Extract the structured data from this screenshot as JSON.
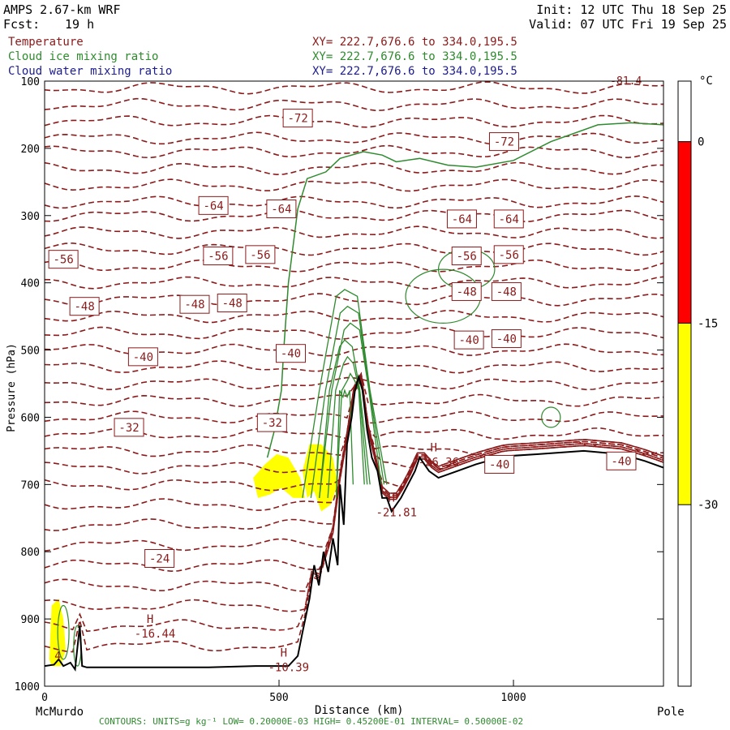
{
  "header": {
    "model": "AMPS 2.67-km WRF",
    "forecast_label": "Fcst:",
    "forecast_hours": "19 h",
    "init": "Init: 12 UTC Thu 18 Sep 25",
    "valid": "Valid: 07 UTC Fri 19 Sep 25"
  },
  "fields": [
    {
      "name": "Temperature",
      "xy": "XY= 222.7,676.6 to 334.0,195.5",
      "color": "#8b1a1a"
    },
    {
      "name": "Cloud ice mixing ratio",
      "xy": "XY= 222.7,676.6 to 334.0,195.5",
      "color": "#2e8b2e"
    },
    {
      "name": "Cloud water mixing ratio",
      "xy": "XY= 222.7,676.6 to 334.0,195.5",
      "color": "#1c1c8c"
    }
  ],
  "footer": {
    "contours": "CONTOURS: UNITS=g kg⁻¹ LOW= 0.20000E-03 HIGH= 0.45200E-01 INTERVAL= 0.50000E-02",
    "start_label": "McMurdo",
    "end_label": "Pole"
  },
  "colorbar": {
    "unit": "°C",
    "ticks": [
      0,
      -15,
      -30
    ],
    "bands": [
      {
        "from": 5,
        "to": 0,
        "color": "#ffffff"
      },
      {
        "from": 0,
        "to": -15,
        "color": "#ff0000"
      },
      {
        "from": -15,
        "to": -30,
        "color": "#ffff00"
      },
      {
        "from": -30,
        "to": -45,
        "color": "#ffffff"
      }
    ]
  },
  "chart_data": {
    "type": "cross-section",
    "xlabel": "Distance (km)",
    "ylabel": "Pressure (hPa)",
    "xlim": [
      0,
      1320
    ],
    "ylim": [
      1000,
      100
    ],
    "x_ticks": [
      0,
      500,
      1000
    ],
    "y_ticks": [
      100,
      200,
      300,
      400,
      500,
      600,
      700,
      800,
      900,
      1000
    ],
    "temperature_labels": [
      {
        "text": "-72",
        "x": 540,
        "y": 155
      },
      {
        "text": "-72",
        "x": 980,
        "y": 190
      },
      {
        "text": "-64",
        "x": 360,
        "y": 285
      },
      {
        "text": "-64",
        "x": 505,
        "y": 290
      },
      {
        "text": "-64",
        "x": 890,
        "y": 305
      },
      {
        "text": "-64",
        "x": 990,
        "y": 305
      },
      {
        "text": "-56",
        "x": 40,
        "y": 365
      },
      {
        "text": "-56",
        "x": 370,
        "y": 360
      },
      {
        "text": "-56",
        "x": 460,
        "y": 358
      },
      {
        "text": "-56",
        "x": 900,
        "y": 360
      },
      {
        "text": "-56",
        "x": 990,
        "y": 358
      },
      {
        "text": "-48",
        "x": 85,
        "y": 435
      },
      {
        "text": "-48",
        "x": 320,
        "y": 432
      },
      {
        "text": "-48",
        "x": 400,
        "y": 430
      },
      {
        "text": "-48",
        "x": 900,
        "y": 413
      },
      {
        "text": "-48",
        "x": 985,
        "y": 413
      },
      {
        "text": "-40",
        "x": 210,
        "y": 510
      },
      {
        "text": "-40",
        "x": 525,
        "y": 505
      },
      {
        "text": "-40",
        "x": 905,
        "y": 485
      },
      {
        "text": "-40",
        "x": 985,
        "y": 483
      },
      {
        "text": "-32",
        "x": 180,
        "y": 615
      },
      {
        "text": "-32",
        "x": 485,
        "y": 608
      },
      {
        "text": "-40",
        "x": 970,
        "y": 670
      },
      {
        "text": "-40",
        "x": 1230,
        "y": 665
      },
      {
        "text": "-24",
        "x": 245,
        "y": 810
      }
    ],
    "extrema": [
      {
        "mark": "H",
        "value": "-16.44",
        "x": 225,
        "y": 925
      },
      {
        "mark": "H",
        "value": "-10.39",
        "x": 510,
        "y": 975
      },
      {
        "mark": "H",
        "value": "-21.81",
        "x": 740,
        "y": 745
      },
      {
        "mark": "H",
        "value": "-26.36",
        "x": 830,
        "y": 670
      }
    ],
    "small_labels": [
      {
        "text": "4",
        "x": 28,
        "y": 960
      },
      {
        "text": "-81.4",
        "x": 1240,
        "y": 105
      }
    ],
    "terrain": [
      [
        0,
        970
      ],
      [
        20,
        968
      ],
      [
        30,
        960
      ],
      [
        40,
        970
      ],
      [
        55,
        965
      ],
      [
        65,
        975
      ],
      [
        75,
        910
      ],
      [
        80,
        970
      ],
      [
        90,
        972
      ],
      [
        200,
        972
      ],
      [
        350,
        972
      ],
      [
        450,
        970
      ],
      [
        520,
        970
      ],
      [
        540,
        955
      ],
      [
        550,
        920
      ],
      [
        565,
        870
      ],
      [
        575,
        820
      ],
      [
        585,
        850
      ],
      [
        595,
        800
      ],
      [
        605,
        830
      ],
      [
        615,
        780
      ],
      [
        625,
        820
      ],
      [
        630,
        700
      ],
      [
        638,
        760
      ],
      [
        645,
        640
      ],
      [
        655,
        600
      ],
      [
        662,
        560
      ],
      [
        670,
        540
      ],
      [
        678,
        560
      ],
      [
        688,
        620
      ],
      [
        698,
        660
      ],
      [
        710,
        680
      ],
      [
        720,
        720
      ],
      [
        730,
        720
      ],
      [
        740,
        740
      ],
      [
        760,
        720
      ],
      [
        790,
        680
      ],
      [
        800,
        660
      ],
      [
        820,
        680
      ],
      [
        840,
        690
      ],
      [
        880,
        680
      ],
      [
        920,
        670
      ],
      [
        980,
        658
      ],
      [
        1050,
        655
      ],
      [
        1150,
        650
      ],
      [
        1230,
        655
      ],
      [
        1280,
        665
      ],
      [
        1320,
        675
      ]
    ],
    "shaded_regions": [
      {
        "color": "#ffff00",
        "points": [
          [
            10,
            960
          ],
          [
            15,
            880
          ],
          [
            30,
            870
          ],
          [
            40,
            900
          ],
          [
            45,
            945
          ],
          [
            35,
            970
          ],
          [
            15,
            970
          ]
        ]
      },
      {
        "color": "#ffff00",
        "points": [
          [
            445,
            690
          ],
          [
            470,
            670
          ],
          [
            495,
            655
          ],
          [
            520,
            660
          ],
          [
            545,
            690
          ],
          [
            555,
            720
          ],
          [
            530,
            720
          ],
          [
            505,
            705
          ],
          [
            480,
            715
          ],
          [
            455,
            720
          ]
        ]
      },
      {
        "color": "#ffff00",
        "points": [
          [
            550,
            680
          ],
          [
            565,
            640
          ],
          [
            590,
            640
          ],
          [
            615,
            660
          ],
          [
            625,
            700
          ],
          [
            610,
            730
          ],
          [
            590,
            740
          ],
          [
            575,
            710
          ],
          [
            560,
            720
          ]
        ]
      }
    ],
    "cloud_ice_outline": [
      [
        475,
        660
      ],
      [
        490,
        620
      ],
      [
        505,
        560
      ],
      [
        510,
        500
      ],
      [
        520,
        400
      ],
      [
        540,
        290
      ],
      [
        560,
        245
      ],
      [
        600,
        235
      ],
      [
        630,
        215
      ],
      [
        680,
        205
      ],
      [
        720,
        210
      ],
      [
        750,
        220
      ],
      [
        800,
        215
      ],
      [
        860,
        225
      ],
      [
        920,
        228
      ],
      [
        1000,
        218
      ],
      [
        1080,
        190
      ],
      [
        1180,
        165
      ],
      [
        1250,
        162
      ],
      [
        1320,
        165
      ]
    ],
    "temperature_isotherms_hPa_rows": [
      110,
      135,
      160,
      185,
      205,
      230,
      255,
      280,
      300,
      325,
      350,
      375,
      400,
      425,
      450,
      475,
      500,
      525,
      550,
      575,
      600,
      625,
      650,
      675,
      700,
      730,
      760,
      790,
      820,
      850,
      880,
      910,
      940
    ]
  }
}
